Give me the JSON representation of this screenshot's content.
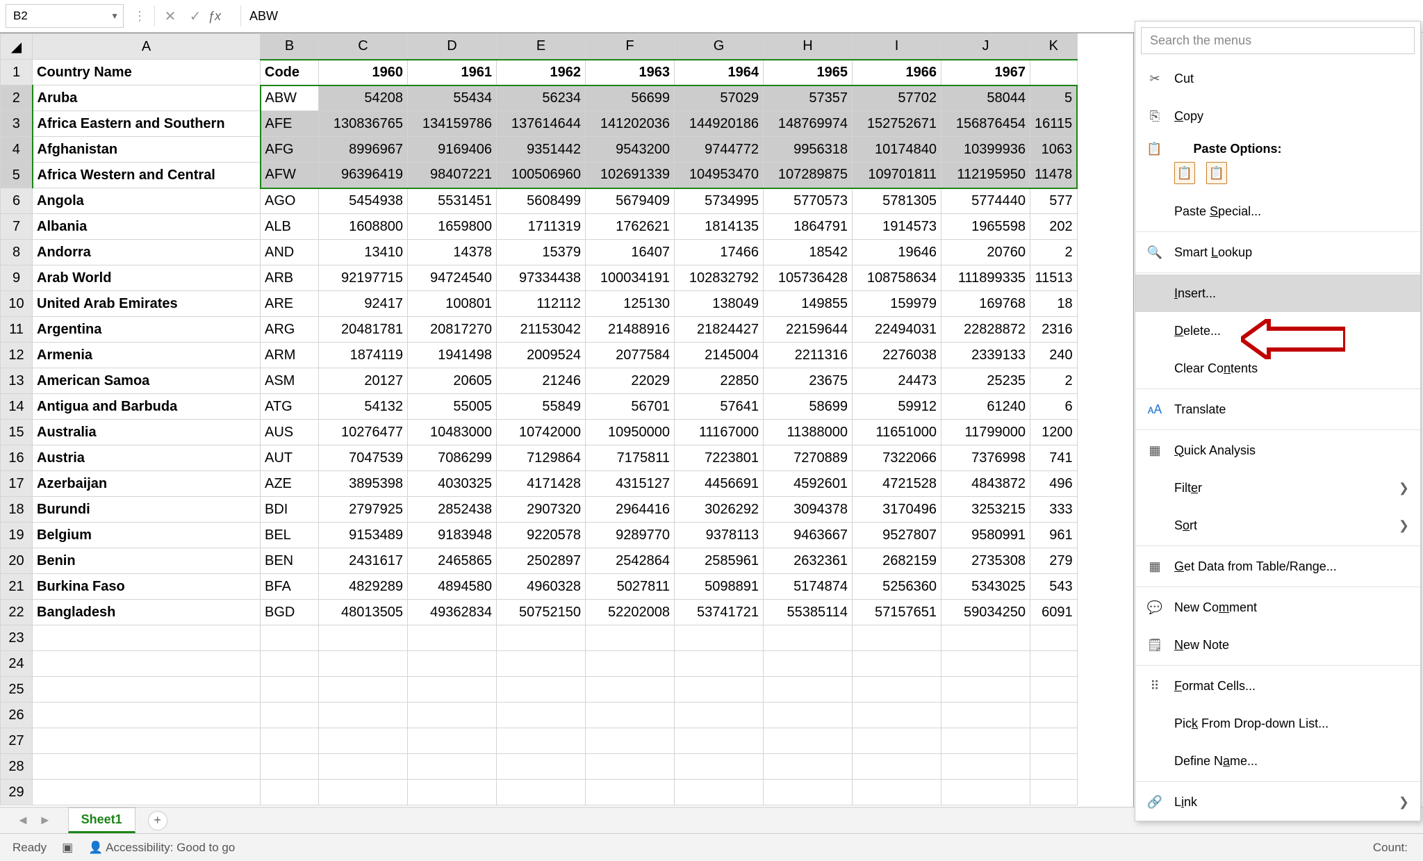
{
  "formula_bar": {
    "name_box": "B2",
    "formula": "ABW"
  },
  "columns": {
    "corner": "",
    "letters": [
      "A",
      "B",
      "C",
      "D",
      "E",
      "F",
      "G",
      "H",
      "I",
      "J",
      "K"
    ]
  },
  "header_row": {
    "a": "Country Name",
    "b": "Code",
    "years": [
      "1960",
      "1961",
      "1962",
      "1963",
      "1964",
      "1965",
      "1966",
      "1967"
    ],
    "k": ""
  },
  "rows": [
    {
      "n": "2",
      "a": "Aruba",
      "b": "ABW",
      "v": [
        "54208",
        "55434",
        "56234",
        "56699",
        "57029",
        "57357",
        "57702",
        "58044"
      ],
      "k": "5"
    },
    {
      "n": "3",
      "a": "Africa Eastern and Southern",
      "b": "AFE",
      "v": [
        "130836765",
        "134159786",
        "137614644",
        "141202036",
        "144920186",
        "148769974",
        "152752671",
        "156876454"
      ],
      "k": "16115"
    },
    {
      "n": "4",
      "a": "Afghanistan",
      "b": "AFG",
      "v": [
        "8996967",
        "9169406",
        "9351442",
        "9543200",
        "9744772",
        "9956318",
        "10174840",
        "10399936"
      ],
      "k": "1063"
    },
    {
      "n": "5",
      "a": "Africa Western and Central",
      "b": "AFW",
      "v": [
        "96396419",
        "98407221",
        "100506960",
        "102691339",
        "104953470",
        "107289875",
        "109701811",
        "112195950"
      ],
      "k": "11478"
    },
    {
      "n": "6",
      "a": "Angola",
      "b": "AGO",
      "v": [
        "5454938",
        "5531451",
        "5608499",
        "5679409",
        "5734995",
        "5770573",
        "5781305",
        "5774440"
      ],
      "k": "577"
    },
    {
      "n": "7",
      "a": "Albania",
      "b": "ALB",
      "v": [
        "1608800",
        "1659800",
        "1711319",
        "1762621",
        "1814135",
        "1864791",
        "1914573",
        "1965598"
      ],
      "k": "202"
    },
    {
      "n": "8",
      "a": "Andorra",
      "b": "AND",
      "v": [
        "13410",
        "14378",
        "15379",
        "16407",
        "17466",
        "18542",
        "19646",
        "20760"
      ],
      "k": "2"
    },
    {
      "n": "9",
      "a": "Arab World",
      "b": "ARB",
      "v": [
        "92197715",
        "94724540",
        "97334438",
        "100034191",
        "102832792",
        "105736428",
        "108758634",
        "111899335"
      ],
      "k": "11513"
    },
    {
      "n": "10",
      "a": "United Arab Emirates",
      "b": "ARE",
      "v": [
        "92417",
        "100801",
        "112112",
        "125130",
        "138049",
        "149855",
        "159979",
        "169768"
      ],
      "k": "18"
    },
    {
      "n": "11",
      "a": "Argentina",
      "b": "ARG",
      "v": [
        "20481781",
        "20817270",
        "21153042",
        "21488916",
        "21824427",
        "22159644",
        "22494031",
        "22828872"
      ],
      "k": "2316"
    },
    {
      "n": "12",
      "a": "Armenia",
      "b": "ARM",
      "v": [
        "1874119",
        "1941498",
        "2009524",
        "2077584",
        "2145004",
        "2211316",
        "2276038",
        "2339133"
      ],
      "k": "240"
    },
    {
      "n": "13",
      "a": "American Samoa",
      "b": "ASM",
      "v": [
        "20127",
        "20605",
        "21246",
        "22029",
        "22850",
        "23675",
        "24473",
        "25235"
      ],
      "k": "2"
    },
    {
      "n": "14",
      "a": "Antigua and Barbuda",
      "b": "ATG",
      "v": [
        "54132",
        "55005",
        "55849",
        "56701",
        "57641",
        "58699",
        "59912",
        "61240"
      ],
      "k": "6"
    },
    {
      "n": "15",
      "a": "Australia",
      "b": "AUS",
      "v": [
        "10276477",
        "10483000",
        "10742000",
        "10950000",
        "11167000",
        "11388000",
        "11651000",
        "11799000"
      ],
      "k": "1200"
    },
    {
      "n": "16",
      "a": "Austria",
      "b": "AUT",
      "v": [
        "7047539",
        "7086299",
        "7129864",
        "7175811",
        "7223801",
        "7270889",
        "7322066",
        "7376998"
      ],
      "k": "741"
    },
    {
      "n": "17",
      "a": "Azerbaijan",
      "b": "AZE",
      "v": [
        "3895398",
        "4030325",
        "4171428",
        "4315127",
        "4456691",
        "4592601",
        "4721528",
        "4843872"
      ],
      "k": "496"
    },
    {
      "n": "18",
      "a": "Burundi",
      "b": "BDI",
      "v": [
        "2797925",
        "2852438",
        "2907320",
        "2964416",
        "3026292",
        "3094378",
        "3170496",
        "3253215"
      ],
      "k": "333"
    },
    {
      "n": "19",
      "a": "Belgium",
      "b": "BEL",
      "v": [
        "9153489",
        "9183948",
        "9220578",
        "9289770",
        "9378113",
        "9463667",
        "9527807",
        "9580991"
      ],
      "k": "961"
    },
    {
      "n": "20",
      "a": "Benin",
      "b": "BEN",
      "v": [
        "2431617",
        "2465865",
        "2502897",
        "2542864",
        "2585961",
        "2632361",
        "2682159",
        "2735308"
      ],
      "k": "279"
    },
    {
      "n": "21",
      "a": "Burkina Faso",
      "b": "BFA",
      "v": [
        "4829289",
        "4894580",
        "4960328",
        "5027811",
        "5098891",
        "5174874",
        "5256360",
        "5343025"
      ],
      "k": "543"
    },
    {
      "n": "22",
      "a": "Bangladesh",
      "b": "BGD",
      "v": [
        "48013505",
        "49362834",
        "50752150",
        "52202008",
        "53741721",
        "55385114",
        "57157651",
        "59034250"
      ],
      "k": "6091"
    }
  ],
  "empty_rows": [
    "23",
    "24",
    "25",
    "26",
    "27",
    "28",
    "29"
  ],
  "selection": {
    "active_cell": "B2",
    "range": "B2:K5",
    "row_first": 2,
    "row_last": 5
  },
  "sheet_tabs": {
    "nav_prev": "◄",
    "nav_next": "►",
    "active": "Sheet1",
    "add": "+"
  },
  "status_bar": {
    "ready": "Ready",
    "accessibility": "Accessibility: Good to go",
    "count_label": "Count:"
  },
  "context_menu": {
    "search_placeholder": "Search the menus",
    "cut": "Cut",
    "copy": "Copy",
    "paste_options": "Paste Options:",
    "paste_special": "Paste Special...",
    "smart_lookup": "Smart Lookup",
    "insert": "Insert...",
    "delete": "Delete...",
    "clear_contents": "Clear Contents",
    "translate": "Translate",
    "quick_analysis": "Quick Analysis",
    "filter": "Filter",
    "sort": "Sort",
    "get_data": "Get Data from Table/Range...",
    "new_comment": "New Comment",
    "new_note": "New Note",
    "format_cells": "Format Cells...",
    "pick_list": "Pick From Drop-down List...",
    "define_name": "Define Name...",
    "link": "Link"
  },
  "colors": {
    "selection_border": "#1c8416",
    "selection_fill": "#cccccc",
    "arrow": "#c00000"
  }
}
